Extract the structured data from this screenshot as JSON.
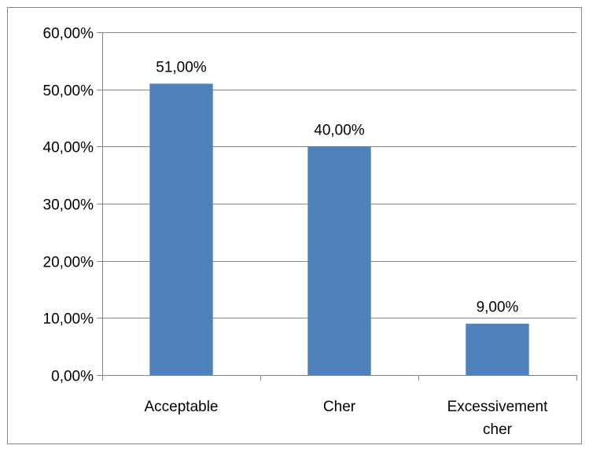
{
  "chart_data": {
    "type": "bar",
    "categories": [
      [
        "Acceptable"
      ],
      [
        "Cher"
      ],
      [
        "Excessivement",
        "cher"
      ]
    ],
    "values": [
      0.51,
      0.4,
      0.09
    ],
    "data_labels": [
      "51,00%",
      "40,00%",
      "9,00%"
    ],
    "yticks": [
      0,
      0.1,
      0.2,
      0.3,
      0.4,
      0.5,
      0.6
    ],
    "ytick_labels": [
      "0,00%",
      "10,00%",
      "20,00%",
      "30,00%",
      "40,00%",
      "50,00%",
      "60,00%"
    ],
    "ylim": [
      0,
      0.6
    ],
    "grid": true,
    "legend": "none",
    "bar_color": "#4F81BD",
    "grid_color": "#868686",
    "border_color": "#868686"
  }
}
